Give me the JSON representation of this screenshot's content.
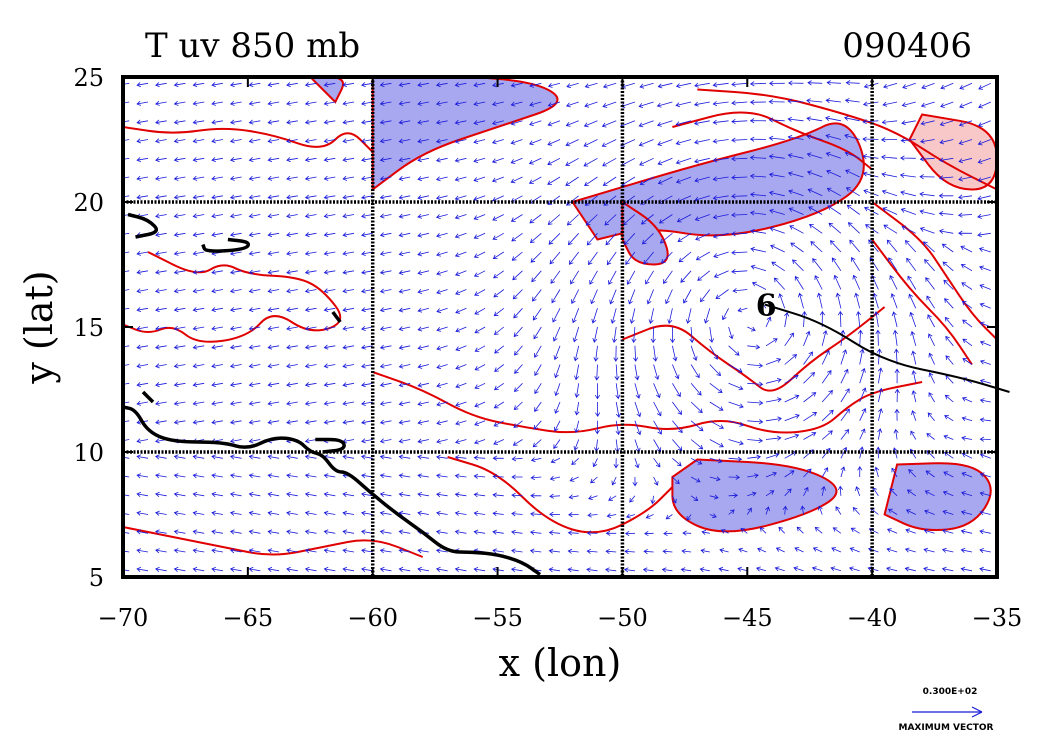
{
  "chart_data": {
    "type": "vector-field-contour-map",
    "title": "T uv 850 mb",
    "date": "090406",
    "xlabel": "x (lon)",
    "ylabel": "y (lat)",
    "xlim": [
      -70,
      -35
    ],
    "ylim": [
      5,
      25
    ],
    "xticks": [
      -70,
      -65,
      -60,
      -55,
      -50,
      -45,
      -40,
      -35
    ],
    "yticks": [
      5,
      10,
      15,
      20,
      25
    ],
    "xtick_labels": [
      "−70",
      "−65",
      "−60",
      "−55",
      "−50",
      "−45",
      "−40",
      "−35"
    ],
    "ytick_labels": [
      "5",
      "10",
      "15",
      "20",
      "25"
    ],
    "grid_lon": [
      -60,
      -50,
      -40
    ],
    "grid_lat": [
      10,
      20
    ],
    "grid": true,
    "storm_symbol": {
      "glyph": "6",
      "lon": -44.3,
      "lat": 15.9
    },
    "storm_track": [
      [
        -44.3,
        15.9
      ],
      [
        -42,
        15.2
      ],
      [
        -39.5,
        13.6
      ],
      [
        -36.5,
        13.0
      ],
      [
        -34.5,
        12.4
      ]
    ],
    "cyclone_center": {
      "lon": -45,
      "lat": 16
    },
    "shaded_regions": [
      {
        "kind": "cool",
        "points": [
          [
            -60,
            25
          ],
          [
            -54,
            25
          ],
          [
            -52,
            24
          ],
          [
            -55,
            23
          ],
          [
            -58,
            22
          ],
          [
            -60,
            20.5
          ]
        ]
      },
      {
        "kind": "cool",
        "points": [
          [
            -52,
            20
          ],
          [
            -47,
            21.5
          ],
          [
            -43,
            22.5
          ],
          [
            -41,
            23.5
          ],
          [
            -40,
            21
          ],
          [
            -42,
            19.5
          ],
          [
            -46,
            18.5
          ],
          [
            -49,
            19
          ],
          [
            -51,
            18.5
          ]
        ]
      },
      {
        "kind": "cool",
        "points": [
          [
            -50,
            20
          ],
          [
            -48.5,
            19
          ],
          [
            -48,
            17.5
          ],
          [
            -49.5,
            17.5
          ],
          [
            -50,
            18.5
          ]
        ]
      },
      {
        "kind": "cool",
        "points": [
          [
            -47,
            9.7
          ],
          [
            -43,
            9.5
          ],
          [
            -41,
            8.5
          ],
          [
            -42.5,
            7.5
          ],
          [
            -46,
            6.6
          ],
          [
            -48,
            7.5
          ],
          [
            -48,
            9
          ]
        ]
      },
      {
        "kind": "cool",
        "points": [
          [
            -39,
            9.5
          ],
          [
            -36,
            9.6
          ],
          [
            -35,
            8.5
          ],
          [
            -36,
            7
          ],
          [
            -38,
            6.8
          ],
          [
            -39.5,
            7.5
          ]
        ]
      },
      {
        "kind": "cool",
        "points": [
          [
            -62.5,
            25
          ],
          [
            -61,
            25
          ],
          [
            -61.5,
            24
          ]
        ]
      },
      {
        "kind": "warm",
        "points": [
          [
            -38,
            23.5
          ],
          [
            -35,
            23
          ],
          [
            -35,
            20.5
          ],
          [
            -37,
            20.5
          ],
          [
            -38.5,
            22.5
          ]
        ]
      }
    ],
    "contours": [
      {
        "kind": "warm",
        "points": [
          [
            -70,
            23
          ],
          [
            -68,
            22.7
          ],
          [
            -66,
            23
          ],
          [
            -64,
            22.7
          ],
          [
            -62,
            22
          ],
          [
            -61,
            23
          ],
          [
            -60,
            22
          ]
        ]
      },
      {
        "kind": "warm",
        "points": [
          [
            -69,
            18
          ],
          [
            -67,
            17
          ],
          [
            -66,
            17.6
          ],
          [
            -65,
            17.1
          ],
          [
            -63,
            17
          ],
          [
            -62,
            16.5
          ],
          [
            -61,
            15.2
          ],
          [
            -62.5,
            14.7
          ],
          [
            -64,
            15.7
          ],
          [
            -65,
            14.6
          ],
          [
            -67,
            14.3
          ],
          [
            -68,
            15.1
          ],
          [
            -69,
            14.7
          ],
          [
            -70,
            15.1
          ]
        ]
      },
      {
        "kind": "warm",
        "points": [
          [
            -60,
            13.2
          ],
          [
            -58,
            12.5
          ],
          [
            -56,
            11.4
          ],
          [
            -54,
            11
          ],
          [
            -52,
            10.7
          ],
          [
            -50,
            11.2
          ],
          [
            -48,
            10.8
          ],
          [
            -46,
            11.4
          ],
          [
            -44,
            10.7
          ],
          [
            -42,
            10.9
          ],
          [
            -41,
            11.8
          ],
          [
            -40,
            12.4
          ],
          [
            -38,
            12.8
          ]
        ]
      },
      {
        "kind": "warm",
        "points": [
          [
            -50,
            14.5
          ],
          [
            -48,
            15.3
          ],
          [
            -46.5,
            14
          ],
          [
            -45,
            13
          ],
          [
            -44,
            12.2
          ],
          [
            -42.5,
            13.6
          ],
          [
            -41,
            14.6
          ],
          [
            -39.5,
            15.8
          ]
        ]
      },
      {
        "kind": "warm",
        "points": [
          [
            -70,
            7
          ],
          [
            -68,
            6.6
          ],
          [
            -66,
            6.2
          ],
          [
            -64,
            5.8
          ],
          [
            -62,
            6.2
          ],
          [
            -60,
            6.6
          ],
          [
            -58,
            5.8
          ]
        ]
      },
      {
        "kind": "warm",
        "points": [
          [
            -57,
            9.8
          ],
          [
            -55,
            9.2
          ],
          [
            -53,
            7.2
          ],
          [
            -51,
            6.6
          ],
          [
            -49,
            7.6
          ],
          [
            -48,
            8.6
          ]
        ]
      },
      {
        "kind": "warm",
        "points": [
          [
            -48,
            23
          ],
          [
            -45,
            23.8
          ],
          [
            -43,
            22.8
          ],
          [
            -41,
            22.1
          ],
          [
            -40,
            21.3
          ]
        ]
      },
      {
        "kind": "warm",
        "points": [
          [
            -47,
            24.5
          ],
          [
            -44,
            24.3
          ],
          [
            -41,
            23.5
          ],
          [
            -39,
            22.8
          ],
          [
            -37,
            21.5
          ],
          [
            -35,
            20.5
          ]
        ]
      },
      {
        "kind": "warm",
        "points": [
          [
            -40,
            20
          ],
          [
            -38,
            18.5
          ],
          [
            -37,
            17
          ],
          [
            -36,
            15.5
          ],
          [
            -35,
            14.5
          ]
        ]
      },
      {
        "kind": "warm",
        "points": [
          [
            -40,
            18.5
          ],
          [
            -38.5,
            16.5
          ],
          [
            -37,
            15
          ],
          [
            -36,
            13.5
          ]
        ]
      }
    ],
    "coastlines": [
      [
        [
          -70,
          11.8
        ],
        [
          -69.5,
          11.7
        ],
        [
          -69,
          10.8
        ],
        [
          -68,
          10.4
        ],
        [
          -66,
          10.4
        ],
        [
          -65,
          10.1
        ],
        [
          -64,
          10.6
        ],
        [
          -63,
          10.5
        ],
        [
          -62.5,
          10
        ],
        [
          -62,
          9.9
        ],
        [
          -61.5,
          9.2
        ],
        [
          -61,
          9.2
        ],
        [
          -60,
          8.3
        ],
        [
          -59,
          7.5
        ],
        [
          -58,
          6.8
        ],
        [
          -57,
          6.0
        ],
        [
          -56,
          6.0
        ],
        [
          -55,
          5.9
        ],
        [
          -54,
          5.6
        ],
        [
          -53.3,
          5.1
        ]
      ],
      [
        [
          -69.8,
          19.5
        ],
        [
          -69,
          19.3
        ],
        [
          -68.5,
          18.8
        ],
        [
          -69.5,
          18.6
        ]
      ],
      [
        [
          -65.8,
          18.5
        ],
        [
          -64.9,
          18.4
        ],
        [
          -65.1,
          18.1
        ],
        [
          -66.7,
          18.0
        ],
        [
          -66.8,
          18.3
        ]
      ],
      [
        [
          -62.3,
          10.5
        ],
        [
          -61.2,
          10.5
        ],
        [
          -61.1,
          10.1
        ],
        [
          -62,
          10.0
        ]
      ],
      [
        [
          -61.6,
          15.6
        ],
        [
          -61.3,
          15.2
        ]
      ],
      [
        [
          -69.2,
          12.4
        ],
        [
          -68.8,
          12.0
        ]
      ]
    ],
    "colors": {
      "vector": "#1a1adb",
      "warm_contour": "#e00000",
      "cool_fill": "#a8a8f0",
      "warm_fill": "#f8c8c8",
      "grid": "#000000",
      "track": "#000000"
    },
    "legend": {
      "magnitude": "0.300E+02",
      "label": "MAXIMUM VECTOR"
    }
  }
}
